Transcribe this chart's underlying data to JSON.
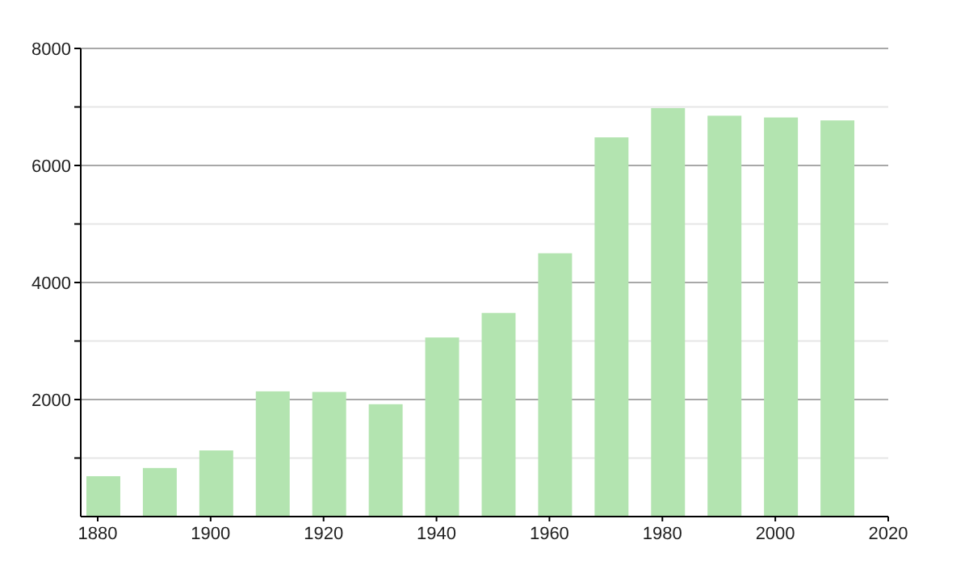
{
  "chart_data": {
    "type": "bar",
    "x": [
      1881,
      1891,
      1901,
      1911,
      1921,
      1931,
      1941,
      1951,
      1961,
      1971,
      1981,
      1991,
      2001,
      2011
    ],
    "values": [
      690,
      830,
      1130,
      2140,
      2130,
      1920,
      3060,
      3480,
      4500,
      6480,
      6980,
      6850,
      6820,
      6770
    ],
    "color": "#b3e4b0",
    "xlim": [
      1877,
      2020
    ],
    "xticks": [
      1880,
      1900,
      1920,
      1940,
      1960,
      1980,
      2000,
      2020
    ],
    "ylim": [
      0,
      8000
    ],
    "yticks": [
      {
        "value": 1000,
        "label": null
      },
      2000,
      {
        "value": 3000,
        "label": null
      },
      4000,
      {
        "value": 5000,
        "label": null
      },
      6000,
      {
        "value": 7000,
        "label": null
      },
      8000
    ],
    "grid": "y"
  }
}
